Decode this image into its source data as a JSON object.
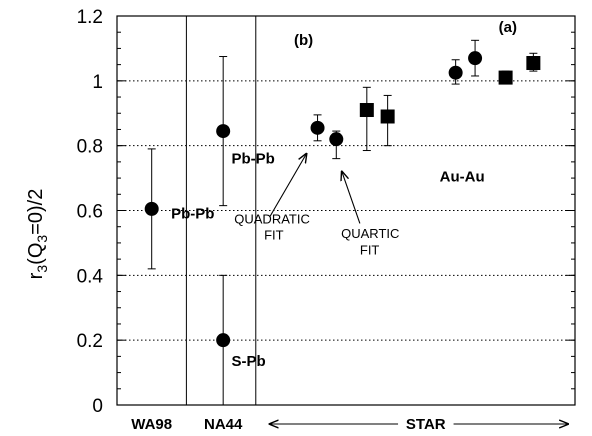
{
  "chart_data": {
    "type": "scatter",
    "ylabel_parts": {
      "base": "r",
      "sub1": "3",
      "mid": "(Q",
      "sub2": "3",
      "tail": "=0)/2"
    },
    "ylim": [
      0,
      1.2
    ],
    "yticks": [
      "0",
      "0.2",
      "0.4",
      "0.6",
      "0.8",
      "1",
      "1.2"
    ],
    "grid": "horizontal-dotted",
    "categories": [
      {
        "label": "WA98"
      },
      {
        "label": "NA44"
      },
      {
        "label": "STAR"
      }
    ],
    "series": [
      {
        "marker": "circle",
        "points": [
          {
            "x": 0.5,
            "y": 0.605,
            "ylo": 0.42,
            "yhi": 0.79
          },
          {
            "x": 1.53,
            "y": 0.845,
            "ylo": 0.615,
            "yhi": 1.075
          },
          {
            "x": 1.53,
            "y": 0.2,
            "ylo": 0.0,
            "yhi": 0.4
          },
          {
            "x": 2.89,
            "y": 0.855,
            "ylo": 0.815,
            "yhi": 0.895
          },
          {
            "x": 3.16,
            "y": 0.82,
            "ylo": 0.76,
            "yhi": 0.845
          },
          {
            "x": 4.88,
            "y": 1.025,
            "ylo": 0.99,
            "yhi": 1.065
          },
          {
            "x": 5.16,
            "y": 1.07,
            "ylo": 1.015,
            "yhi": 1.125
          }
        ]
      },
      {
        "marker": "square",
        "points": [
          {
            "x": 3.6,
            "y": 0.91,
            "ylo": 0.785,
            "yhi": 0.98
          },
          {
            "x": 3.9,
            "y": 0.89,
            "ylo": 0.8,
            "yhi": 0.955
          },
          {
            "x": 5.6,
            "y": 1.01,
            "ylo": 0.995,
            "yhi": 1.03
          },
          {
            "x": 6.0,
            "y": 1.055,
            "ylo": 1.03,
            "yhi": 1.085
          }
        ]
      }
    ],
    "annotations": [
      {
        "text": "(a)",
        "style": "bold",
        "x": 5.5,
        "y": 1.15
      },
      {
        "text": "(b)",
        "style": "bold",
        "x": 2.55,
        "y": 1.11
      },
      {
        "text": "Pb-Pb",
        "style": "bold",
        "x": 0.78,
        "y": 0.575
      },
      {
        "text": "Pb-Pb",
        "style": "bold",
        "x": 1.65,
        "y": 0.745
      },
      {
        "text": "S-Pb",
        "style": "bold",
        "x": 1.65,
        "y": 0.12
      },
      {
        "text": "Au-Au",
        "style": "bold",
        "x": 4.65,
        "y": 0.69
      },
      {
        "text": "QUADRATIC",
        "style": "plain",
        "x": 1.69,
        "y": 0.56
      },
      {
        "text": "FIT",
        "style": "plain",
        "x": 2.12,
        "y": 0.51
      },
      {
        "text": "QUARTIC",
        "style": "plain",
        "x": 3.23,
        "y": 0.515
      },
      {
        "text": "FIT",
        "style": "plain",
        "x": 3.5,
        "y": 0.465
      }
    ]
  }
}
